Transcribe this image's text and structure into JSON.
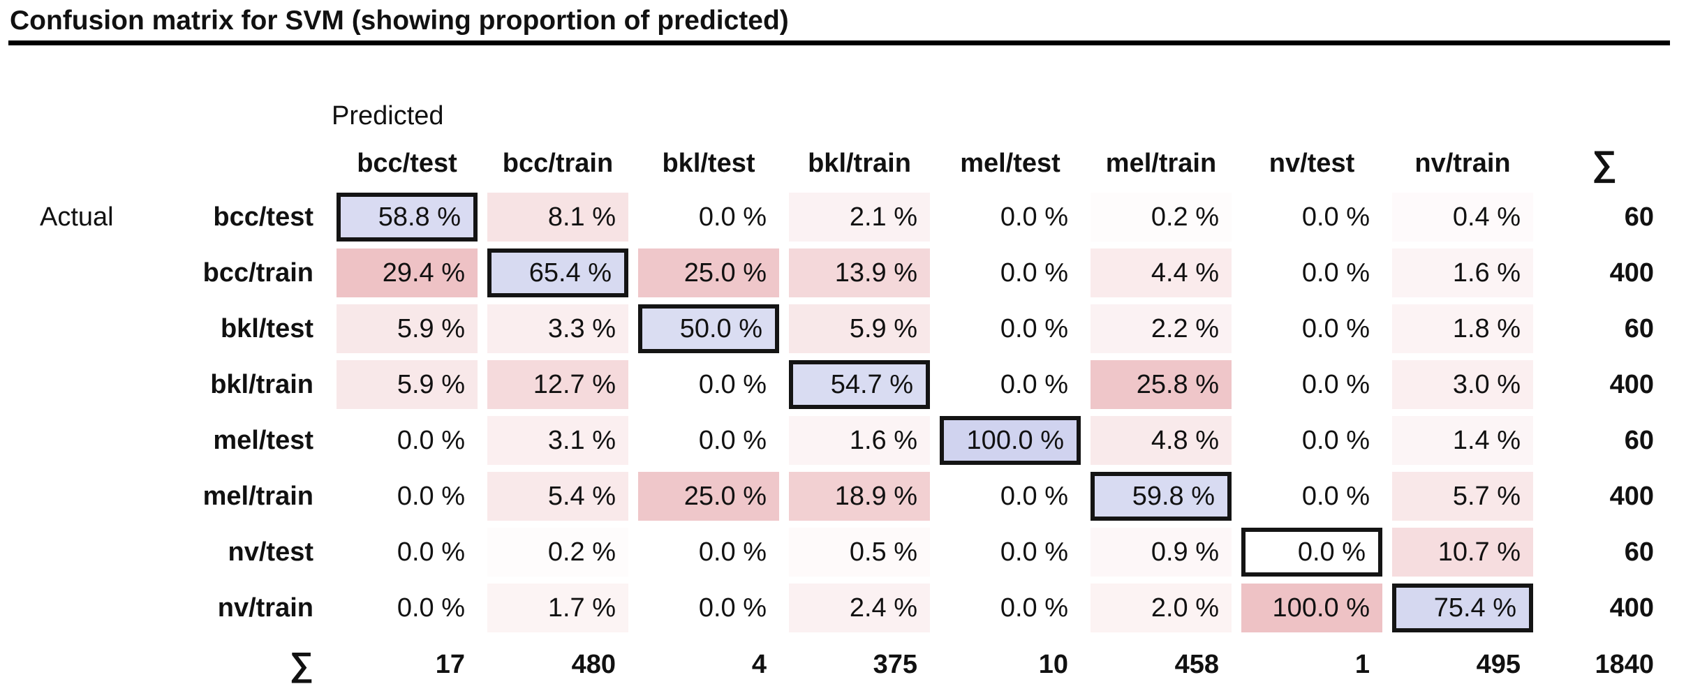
{
  "title": "Confusion matrix for SVM (showing proportion of predicted)",
  "axis_labels": {
    "predicted": "Predicted",
    "actual": "Actual"
  },
  "sum_symbol": "∑",
  "chart_data": {
    "type": "heatmap",
    "title": "Confusion matrix for SVM (showing proportion of predicted)",
    "columns": [
      "bcc/test",
      "bcc/train",
      "bkl/test",
      "bkl/train",
      "mel/test",
      "mel/train",
      "nv/test",
      "nv/train"
    ],
    "rows": [
      "bcc/test",
      "bcc/train",
      "bkl/test",
      "bkl/train",
      "mel/test",
      "mel/train",
      "nv/test",
      "nv/train"
    ],
    "values_percent": [
      [
        58.8,
        8.1,
        0.0,
        2.1,
        0.0,
        0.2,
        0.0,
        0.4
      ],
      [
        29.4,
        65.4,
        25.0,
        13.9,
        0.0,
        4.4,
        0.0,
        1.6
      ],
      [
        5.9,
        3.3,
        50.0,
        5.9,
        0.0,
        2.2,
        0.0,
        1.8
      ],
      [
        5.9,
        12.7,
        0.0,
        54.7,
        0.0,
        25.8,
        0.0,
        3.0
      ],
      [
        0.0,
        3.1,
        0.0,
        1.6,
        100.0,
        4.8,
        0.0,
        1.4
      ],
      [
        0.0,
        5.4,
        25.0,
        18.9,
        0.0,
        59.8,
        0.0,
        5.7
      ],
      [
        0.0,
        0.2,
        0.0,
        0.5,
        0.0,
        0.9,
        0.0,
        10.7
      ],
      [
        0.0,
        1.7,
        0.0,
        2.4,
        0.0,
        2.0,
        100.0,
        75.4
      ]
    ],
    "percent_suffix": " %",
    "row_sums": [
      60,
      400,
      60,
      400,
      60,
      400,
      60,
      400
    ],
    "col_sums": [
      17,
      480,
      4,
      375,
      10,
      458,
      1,
      495
    ],
    "total": 1840,
    "legend_position": "none",
    "grid": false,
    "colors": {
      "pink_base": "#eec2c5",
      "blue_base": "#babfe7",
      "diag_border": "#141414",
      "zero_cell": "#ffffff",
      "text": "#111111"
    }
  }
}
